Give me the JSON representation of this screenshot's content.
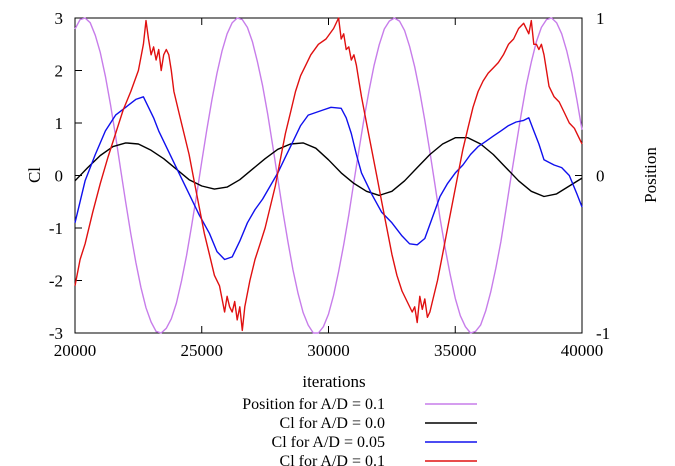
{
  "chart_data": {
    "type": "line",
    "title": "",
    "xlabel": "iterations",
    "ylabel": "Cl",
    "y2label": "Position",
    "xlim": [
      20000,
      40000
    ],
    "ylim": [
      -3,
      3
    ],
    "y2lim": [
      -1,
      1
    ],
    "xticks": [
      "20000",
      "25000",
      "30000",
      "35000",
      "40000"
    ],
    "yticks": [
      "-3",
      "-2",
      "-1",
      "0",
      "1",
      "2",
      "3"
    ],
    "y2ticks": [
      "-1",
      "0",
      "1"
    ],
    "grid": false,
    "legend_position": "bottom",
    "colors": {
      "position": "#c77dea",
      "cl_00": "#000000",
      "cl_005": "#1010ee",
      "cl_01": "#e01010"
    },
    "series": [
      {
        "name": "Position for A/D = 0.1",
        "axis": "y2",
        "color": "#c77dea",
        "x": [
          20000,
          20200,
          20400,
          20600,
          20800,
          21000,
          21200,
          21400,
          21600,
          21800,
          22000,
          22200,
          22400,
          22600,
          22800,
          23000,
          23200,
          23400,
          23600,
          23800,
          24000,
          24200,
          24400,
          24600,
          24800,
          25000,
          25200,
          25400,
          25600,
          25800,
          26000,
          26200,
          26400,
          26600,
          26800,
          27000,
          27200,
          27400,
          27600,
          27800,
          28000,
          28200,
          28400,
          28600,
          28800,
          29000,
          29200,
          29400,
          29600,
          29800,
          30000,
          30200,
          30400,
          30600,
          30800,
          31000,
          31200,
          31400,
          31600,
          31800,
          32000,
          32200,
          32400,
          32600,
          32800,
          33000,
          33200,
          33400,
          33600,
          33800,
          34000,
          34200,
          34400,
          34600,
          34800,
          35000,
          35200,
          35400,
          35600,
          35800,
          36000,
          36200,
          36400,
          36600,
          36800,
          37000,
          37200,
          37400,
          37600,
          37800,
          38000,
          38200,
          38400,
          38600,
          38800,
          39000,
          39200,
          39400,
          39600,
          39800,
          40000
        ],
        "y": [
          0.93,
          0.99,
          1.0,
          0.97,
          0.89,
          0.78,
          0.63,
          0.45,
          0.25,
          0.04,
          -0.17,
          -0.37,
          -0.55,
          -0.71,
          -0.84,
          -0.93,
          -0.99,
          -1.0,
          -0.97,
          -0.91,
          -0.81,
          -0.67,
          -0.51,
          -0.32,
          -0.12,
          0.09,
          0.29,
          0.48,
          0.65,
          0.79,
          0.9,
          0.97,
          1.0,
          0.99,
          0.94,
          0.85,
          0.72,
          0.57,
          0.39,
          0.19,
          -0.02,
          -0.23,
          -0.42,
          -0.6,
          -0.75,
          -0.87,
          -0.95,
          -1.0,
          -1.0,
          -0.96,
          -0.88,
          -0.76,
          -0.61,
          -0.44,
          -0.25,
          -0.04,
          0.16,
          0.36,
          0.54,
          0.7,
          0.83,
          0.93,
          0.98,
          1.0,
          0.98,
          0.92,
          0.82,
          0.69,
          0.53,
          0.35,
          0.15,
          -0.06,
          -0.27,
          -0.46,
          -0.63,
          -0.78,
          -0.89,
          -0.96,
          -1.0,
          -0.99,
          -0.95,
          -0.86,
          -0.74,
          -0.59,
          -0.42,
          -0.22,
          -0.01,
          0.19,
          0.39,
          0.57,
          0.72,
          0.85,
          0.94,
          0.99,
          1.0,
          0.97,
          0.9,
          0.79,
          0.65,
          0.48,
          0.29
        ]
      },
      {
        "name": "Cl for A/D = 0.0",
        "axis": "y",
        "color": "#000000",
        "x": [
          20000,
          20500,
          21000,
          21500,
          22000,
          22500,
          23000,
          23500,
          24000,
          24500,
          25000,
          25500,
          26000,
          26500,
          27000,
          27500,
          28000,
          28500,
          29000,
          29500,
          30000,
          30500,
          31000,
          31500,
          32000,
          32500,
          33000,
          33500,
          34000,
          34500,
          35000,
          35500,
          36000,
          36500,
          37000,
          37500,
          38000,
          38500,
          39000,
          39500,
          40000
        ],
        "y": [
          -0.1,
          0.15,
          0.38,
          0.55,
          0.62,
          0.6,
          0.48,
          0.32,
          0.12,
          -0.08,
          -0.2,
          -0.26,
          -0.22,
          -0.08,
          0.12,
          0.32,
          0.5,
          0.6,
          0.62,
          0.52,
          0.3,
          0.05,
          -0.15,
          -0.3,
          -0.38,
          -0.3,
          -0.1,
          0.15,
          0.4,
          0.6,
          0.72,
          0.72,
          0.6,
          0.4,
          0.15,
          -0.1,
          -0.3,
          -0.4,
          -0.35,
          -0.2,
          -0.05
        ]
      },
      {
        "name": "Cl for A/D = 0.05",
        "axis": "y",
        "color": "#1010ee",
        "x": [
          20000,
          20400,
          20800,
          21200,
          21600,
          22000,
          22400,
          22700,
          22900,
          23100,
          23300,
          23700,
          24100,
          24500,
          24900,
          25300,
          25600,
          25900,
          26200,
          26500,
          26800,
          27100,
          27400,
          27700,
          28000,
          28300,
          28600,
          28900,
          29200,
          29500,
          29800,
          30100,
          30500,
          30700,
          30900,
          31100,
          31300,
          31700,
          32100,
          32500,
          32900,
          33200,
          33500,
          33800,
          34100,
          34400,
          34700,
          35000,
          35300,
          35600,
          35900,
          36200,
          36500,
          36800,
          37100,
          37400,
          37700,
          37900,
          38100,
          38300,
          38500,
          38700,
          38900,
          39200,
          39500,
          39800,
          40000
        ],
        "y": [
          -0.9,
          -0.1,
          0.4,
          0.85,
          1.15,
          1.3,
          1.45,
          1.5,
          1.3,
          1.1,
          0.85,
          0.45,
          0.05,
          -0.35,
          -0.75,
          -1.1,
          -1.45,
          -1.6,
          -1.55,
          -1.25,
          -0.9,
          -0.65,
          -0.45,
          -0.2,
          0.05,
          0.35,
          0.65,
          0.95,
          1.15,
          1.2,
          1.25,
          1.3,
          1.28,
          1.1,
          0.8,
          0.4,
          0.05,
          -0.35,
          -0.7,
          -0.9,
          -1.15,
          -1.3,
          -1.32,
          -1.2,
          -0.8,
          -0.4,
          -0.15,
          0.05,
          0.2,
          0.4,
          0.55,
          0.65,
          0.75,
          0.85,
          0.95,
          1.02,
          1.05,
          1.1,
          0.85,
          0.6,
          0.3,
          0.25,
          0.2,
          0.15,
          0.0,
          -0.35,
          -0.6
        ]
      },
      {
        "name": "Cl for A/D = 0.1",
        "axis": "y",
        "color": "#e01010",
        "x": [
          20000,
          20200,
          20400,
          20700,
          21000,
          21300,
          21600,
          21900,
          22200,
          22500,
          22700,
          22800,
          22900,
          23000,
          23100,
          23200,
          23300,
          23400,
          23500,
          23600,
          23700,
          23800,
          23900,
          24100,
          24300,
          24500,
          24700,
          24900,
          25100,
          25300,
          25500,
          25700,
          25900,
          26000,
          26100,
          26200,
          26300,
          26400,
          26500,
          26600,
          26700,
          26900,
          27100,
          27300,
          27500,
          27700,
          27900,
          28100,
          28300,
          28500,
          28700,
          28900,
          29100,
          29300,
          29600,
          29900,
          30200,
          30400,
          30500,
          30600,
          30700,
          30800,
          30900,
          31000,
          31100,
          31200,
          31300,
          31500,
          31700,
          31900,
          32100,
          32300,
          32500,
          32700,
          32900,
          33100,
          33300,
          33400,
          33500,
          33600,
          33700,
          33800,
          33900,
          34000,
          34100,
          34300,
          34500,
          34700,
          34900,
          35100,
          35300,
          35500,
          35700,
          35900,
          36100,
          36300,
          36500,
          36700,
          36900,
          37100,
          37300,
          37500,
          37700,
          37900,
          38000,
          38100,
          38200,
          38300,
          38400,
          38500,
          38600,
          38700,
          38900,
          39100,
          39300,
          39500,
          39700,
          39900,
          40000
        ],
        "y": [
          -2.1,
          -1.6,
          -1.3,
          -0.7,
          -0.15,
          0.35,
          0.8,
          1.25,
          1.6,
          2.0,
          2.5,
          2.95,
          2.6,
          2.3,
          2.45,
          2.2,
          2.4,
          2.0,
          2.3,
          2.4,
          2.3,
          2.0,
          1.6,
          1.2,
          0.8,
          0.4,
          -0.1,
          -0.6,
          -1.1,
          -1.5,
          -1.9,
          -2.1,
          -2.6,
          -2.3,
          -2.5,
          -2.6,
          -2.4,
          -2.75,
          -2.5,
          -2.95,
          -2.5,
          -2.0,
          -1.6,
          -1.3,
          -1.0,
          -0.6,
          -0.2,
          0.3,
          0.8,
          1.2,
          1.6,
          1.9,
          2.1,
          2.3,
          2.5,
          2.6,
          2.8,
          3.0,
          2.6,
          2.7,
          2.4,
          2.45,
          2.2,
          2.3,
          2.1,
          1.8,
          1.5,
          1.0,
          0.5,
          0.0,
          -0.5,
          -1.0,
          -1.5,
          -1.9,
          -2.2,
          -2.4,
          -2.6,
          -2.5,
          -2.8,
          -2.3,
          -2.55,
          -2.35,
          -2.7,
          -2.6,
          -2.4,
          -2.0,
          -1.5,
          -1.0,
          -0.5,
          0.0,
          0.5,
          0.9,
          1.3,
          1.6,
          1.8,
          1.95,
          2.05,
          2.15,
          2.3,
          2.5,
          2.6,
          2.8,
          2.9,
          2.7,
          2.95,
          2.5,
          2.5,
          2.4,
          2.5,
          2.3,
          2.0,
          1.7,
          1.5,
          1.4,
          1.2,
          1.0,
          0.9,
          0.7,
          0.6
        ]
      }
    ]
  }
}
